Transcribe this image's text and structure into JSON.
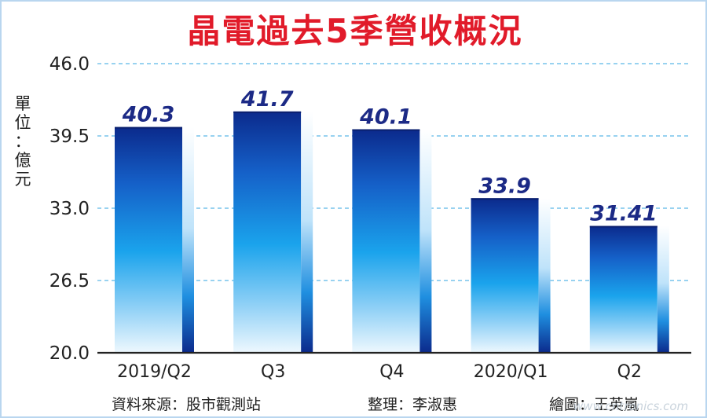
{
  "title": "晶電過去5季營收概況",
  "unit_label": [
    "單",
    "位",
    "：",
    "億",
    "元"
  ],
  "chart_data": {
    "type": "bar",
    "title": "晶電過去5季營收概況",
    "ylabel": "單位：億元",
    "categories": [
      "2019/Q2",
      "Q3",
      "Q4",
      "2020/Q1",
      "Q2"
    ],
    "values": [
      40.3,
      41.7,
      40.1,
      33.9,
      31.41
    ],
    "value_labels": [
      "40.3",
      "41.7",
      "40.1",
      "33.9",
      "31.41"
    ],
    "ylim": [
      20.0,
      46.0
    ],
    "yticks": [
      "20.0",
      "26.5",
      "33.0",
      "39.5",
      "46.0"
    ],
    "ytick_values": [
      20.0,
      26.5,
      33.0,
      39.5,
      46.0
    ],
    "grid": true,
    "colors": {
      "bar_dark": "#0b2a8c",
      "bar_mid": "#1a9be8",
      "bar_light": "#e8f4fd",
      "value_label": "#1c2a86",
      "grid": "#5bb6e6"
    }
  },
  "footer": {
    "source": "資料來源：股市觀測站",
    "editor": "整理：李淑惠",
    "artist": "繪圖：王英嵐"
  },
  "watermark": "www.cntronics.com"
}
